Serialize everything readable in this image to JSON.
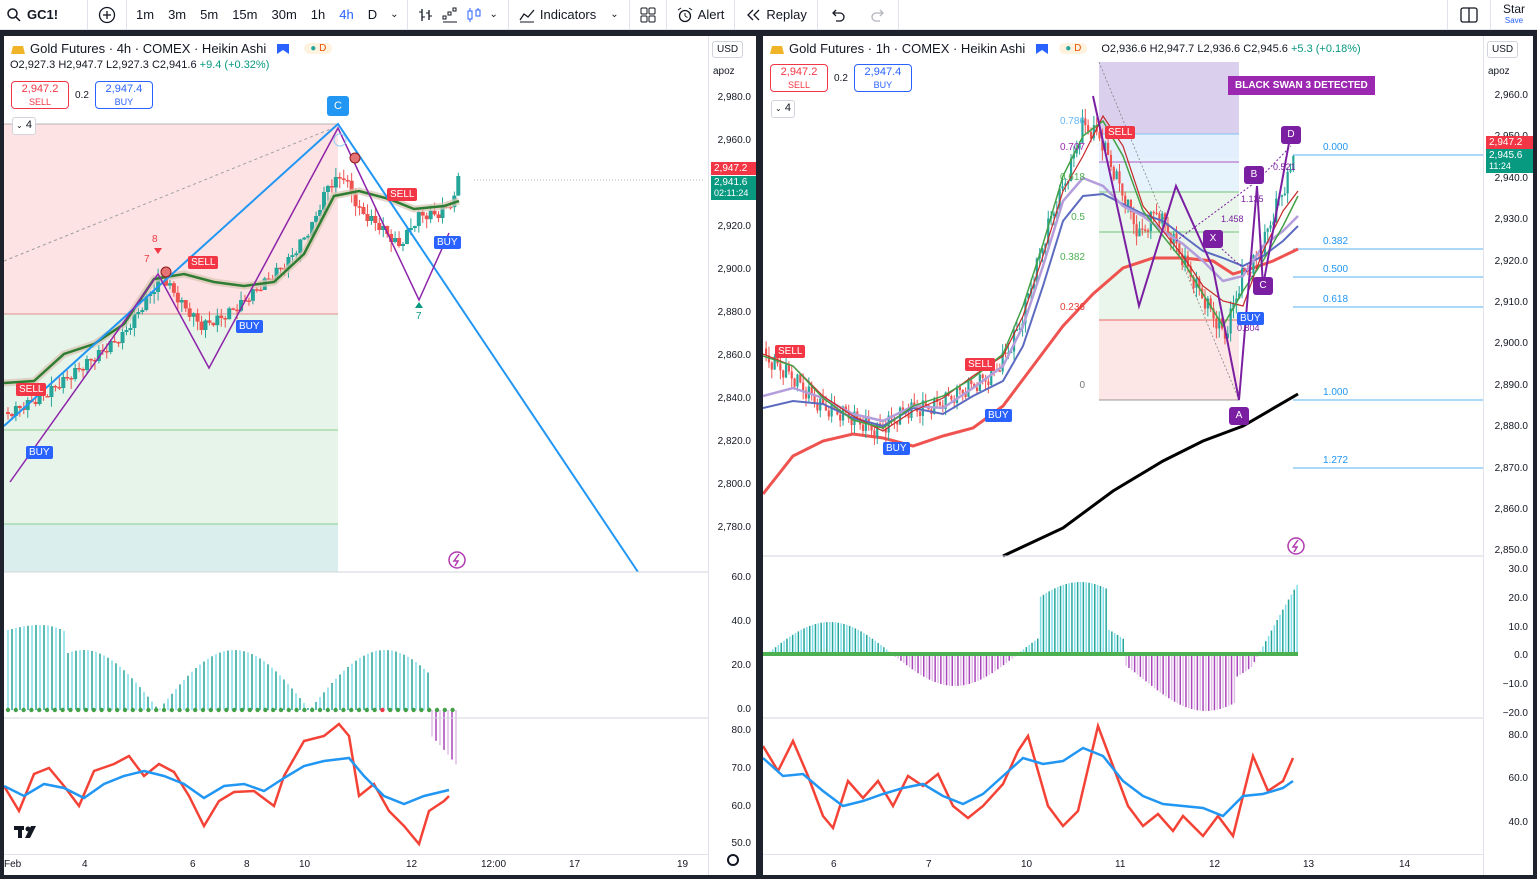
{
  "toolbar": {
    "symbol": "GC1!",
    "timeframes": [
      "1m",
      "3m",
      "5m",
      "15m",
      "30m",
      "1h",
      "4h",
      "D"
    ],
    "active_timeframe": "4h",
    "indicators_label": "Indicators",
    "alert_label": "Alert",
    "replay_label": "Replay",
    "star_label": "Star",
    "save_label": "Save"
  },
  "left_pane": {
    "title": "Gold Futures · 4h · COMEX · Heikin Ashi",
    "d_badge": "D",
    "ohlc": {
      "o": "O2,927.3",
      "h": "H2,947.7",
      "l": "L2,927.3",
      "c": "C2,941.6",
      "chg": "+9.4 (+0.32%)"
    },
    "sell_price": "2,947.2",
    "sell_label": "SELL",
    "spread": "0.2",
    "buy_price": "2,947.4",
    "buy_label": "BUY",
    "collapse_count": "4",
    "currency": "USD",
    "scale": "apoz",
    "price_ticks": [
      "2,980.0",
      "2,960.0",
      "2,940.0",
      "2,920.0",
      "2,900.0",
      "2,880.0",
      "2,860.0",
      "2,840.0",
      "2,820.0",
      "2,800.0",
      "2,780.0"
    ],
    "osc_ticks": [
      "60.0",
      "40.0",
      "20.0",
      "0.0"
    ],
    "rsi_ticks": [
      "80.0",
      "70.0",
      "60.0",
      "50.0"
    ],
    "price_tag_red": "2,947.2",
    "price_tag_green": "2,941.6",
    "price_tag_time": "02:11:24",
    "time_ticks": [
      "Feb",
      "4",
      "6",
      "8",
      "10",
      "12",
      "12:00",
      "17",
      "19"
    ],
    "pattern_labels": {
      "c": "C",
      "buy": "BUY",
      "sell": "SELL",
      "n8": "8",
      "n7": "7",
      "n7b": "7"
    }
  },
  "right_pane": {
    "title": "Gold Futures · 1h · COMEX · Heikin Ashi",
    "d_badge": "D",
    "ohlc": {
      "o": "O2,936.6",
      "h": "H2,947.7",
      "l": "L2,936.6",
      "c": "C2,945.6",
      "chg": "+5.3 (+0.18%)"
    },
    "sell_price": "2,947.2",
    "sell_label": "SELL",
    "spread": "0.2",
    "buy_price": "2,947.4",
    "buy_label": "BUY",
    "collapse_count": "4",
    "currency": "USD",
    "scale": "apoz",
    "price_ticks": [
      "2,960.0",
      "2,950.0",
      "2,940.0",
      "2,930.0",
      "2,920.0",
      "2,910.0",
      "2,900.0",
      "2,890.0",
      "2,880.0",
      "2,870.0",
      "2,860.0",
      "2,850.0"
    ],
    "osc_ticks": [
      "30.0",
      "20.0",
      "10.0",
      "0.0",
      "−10.0",
      "−20.0"
    ],
    "rsi_ticks": [
      "80.0",
      "60.0",
      "40.0"
    ],
    "price_tag_red": "2,947.2",
    "price_tag_green": "2,945.6",
    "price_tag_time": "11:24",
    "time_ticks": [
      "6",
      "7",
      "10",
      "11",
      "12",
      "13",
      "14"
    ],
    "fib_left": [
      "0.786",
      "0.707",
      "0.618",
      "0.5",
      "0.382",
      "0.236",
      "0"
    ],
    "fib_right": [
      "0.000",
      "0.382",
      "0.500",
      "0.618",
      "1.000",
      "1.272"
    ],
    "harmonic": {
      "x": "X",
      "a": "A",
      "b": "B",
      "c": "C",
      "d": "D",
      "r1": "1.458",
      "r2": "1.135",
      "r3": "0.521",
      "r4": "0.804"
    },
    "black_swan": "BLACK SWAN 3 DETECTED",
    "signals": {
      "sell1": "SELL",
      "sell2": "SELL",
      "sell3": "SELL",
      "buy1": "BUY",
      "buy2": "BUY",
      "buy3": "BUY"
    }
  }
}
